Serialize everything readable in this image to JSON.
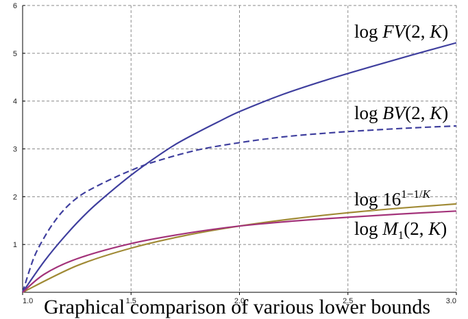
{
  "chart_data": {
    "type": "line",
    "title": "",
    "xlabel": "",
    "ylabel": "",
    "xlim": [
      1.0,
      3.0
    ],
    "ylim": [
      0,
      6
    ],
    "x_ticks": [
      "1.0",
      "1.5",
      "2.0",
      "2.5",
      "3.0"
    ],
    "y_ticks": [
      "1",
      "2",
      "3",
      "4",
      "5",
      "6"
    ],
    "grid": true,
    "grid_style": "dashed",
    "series": [
      {
        "name": "log FV(2, K)",
        "color": "#3f3f9e",
        "style": "solid",
        "x": [
          1.0,
          1.1,
          1.2,
          1.3,
          1.4,
          1.5,
          1.6,
          1.7,
          1.8,
          1.9,
          2.0,
          2.2,
          2.4,
          2.6,
          2.8,
          3.0
        ],
        "y": [
          0.0,
          0.65,
          1.2,
          1.68,
          2.08,
          2.45,
          2.78,
          3.08,
          3.33,
          3.56,
          3.78,
          4.14,
          4.44,
          4.71,
          4.97,
          5.22
        ]
      },
      {
        "name": "log BV(2, K)",
        "color": "#3f3f9e",
        "style": "dashed",
        "x": [
          1.0,
          1.05,
          1.1,
          1.15,
          1.2,
          1.25,
          1.3,
          1.4,
          1.5,
          1.6,
          1.8,
          2.0,
          2.2,
          2.4,
          2.6,
          2.8,
          3.0
        ],
        "y": [
          0.0,
          0.7,
          1.15,
          1.5,
          1.77,
          1.97,
          2.12,
          2.35,
          2.55,
          2.72,
          2.97,
          3.13,
          3.25,
          3.33,
          3.39,
          3.44,
          3.48
        ]
      },
      {
        "name": "log 16^(1−1/K)",
        "color": "#a08a35",
        "style": "solid",
        "x": [
          1.0,
          1.25,
          1.5,
          1.75,
          2.0,
          2.25,
          2.5,
          2.75,
          3.0
        ],
        "y": [
          0.0,
          0.555,
          0.924,
          1.188,
          1.386,
          1.54,
          1.664,
          1.764,
          1.848
        ]
      },
      {
        "name": "log M1(2, K)",
        "color": "#a3337a",
        "style": "solid",
        "x": [
          1.0,
          1.1,
          1.25,
          1.5,
          1.75,
          2.0,
          2.25,
          2.5,
          2.75,
          3.0
        ],
        "y": [
          0.0,
          0.38,
          0.7,
          1.02,
          1.23,
          1.386,
          1.49,
          1.57,
          1.64,
          1.7
        ]
      }
    ],
    "annotations": [
      {
        "text": "log FV(2, K)"
      },
      {
        "text": "log BV(2, K)"
      },
      {
        "text": "log 16^(1−1/K)"
      },
      {
        "text": "log M1(2, K)"
      }
    ]
  },
  "caption_text": "Graphical comparison of various lower bounds"
}
